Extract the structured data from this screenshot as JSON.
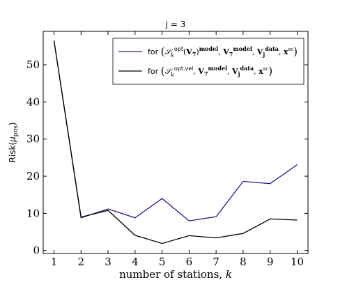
{
  "chart_data": {
    "type": "line",
    "title": "j = 3",
    "xlabel": "number of stations, k",
    "ylabel": "Risk(μ_pos)",
    "x": [
      1,
      2,
      3,
      4,
      5,
      6,
      7,
      8,
      9,
      10
    ],
    "xticks": [
      1,
      2,
      3,
      4,
      5,
      6,
      7,
      8,
      9,
      10
    ],
    "yticks": [
      0,
      10,
      20,
      30,
      40,
      50
    ],
    "xlim": [
      0.6,
      10.4
    ],
    "ylim": [
      -0.8,
      59
    ],
    "grid": false,
    "legend_position": "top-right",
    "series": [
      {
        "name": "for (S_k^opt(V_7)^model, V_7^model, V_j^data, x^sc)",
        "color": "#1a1a8c",
        "values": [
          56.5,
          8.8,
          11.2,
          8.8,
          14.0,
          8.0,
          9.1,
          18.6,
          18.0,
          23.1
        ]
      },
      {
        "name": "for (S_k^opt,vel, V_7^model, V_j^data, x^sc)",
        "color": "#000000",
        "values": [
          56.5,
          9.0,
          10.8,
          4.1,
          1.9,
          4.0,
          3.4,
          4.6,
          8.5,
          8.2
        ]
      }
    ]
  }
}
